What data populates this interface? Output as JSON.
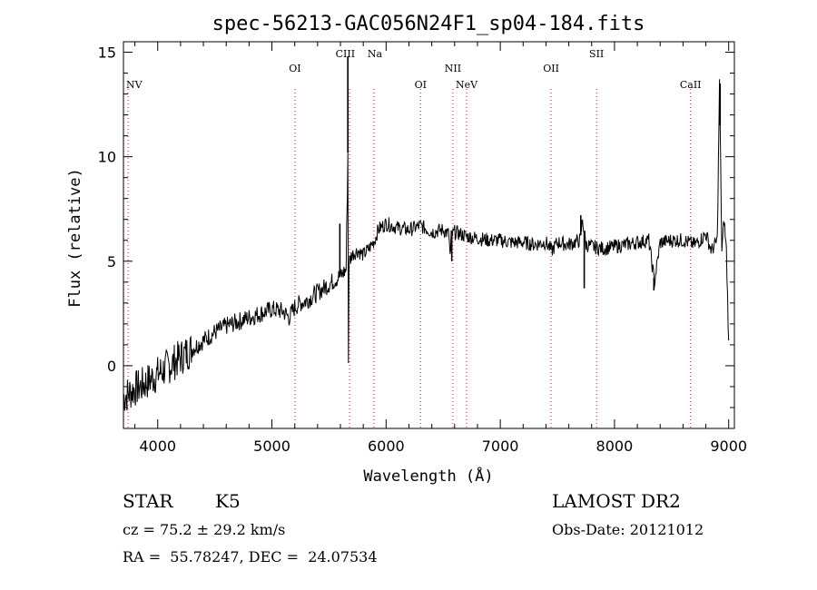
{
  "chart_data": {
    "type": "line",
    "title": "spec-56213-GAC056N24F1_sp04-184.fits",
    "xlabel": "Wavelength (Å)",
    "ylabel": "Flux (relative)",
    "xlim": [
      3700,
      9050
    ],
    "ylim": [
      -3,
      15.5
    ],
    "xticks": [
      4000,
      5000,
      6000,
      7000,
      8000,
      9000
    ],
    "xtick_labels": [
      "4000",
      "5000",
      "6000",
      "7000",
      "8000",
      "9000"
    ],
    "yticks": [
      0,
      5,
      10,
      15
    ],
    "ytick_labels": [
      "0",
      "5",
      "10",
      "15"
    ],
    "grid": false,
    "series": [
      {
        "x": [
          3700,
          3750,
          3800,
          3850,
          3900,
          3950,
          4000,
          4050,
          4100,
          4150,
          4200,
          4300,
          4400,
          4500,
          4600,
          4700,
          4800,
          4900,
          5000,
          5100,
          5150,
          5200,
          5250,
          5300,
          5350,
          5400,
          5450,
          5500,
          5550,
          5600,
          5650,
          5665,
          5670,
          5675,
          5680,
          5700,
          5750,
          5800,
          5850,
          5900,
          5930,
          5950,
          6000,
          6100,
          6200,
          6300,
          6400,
          6500,
          6550,
          6563,
          6570,
          6600,
          6700,
          6800,
          6900,
          7000,
          7100,
          7200,
          7300,
          7400,
          7450,
          7500,
          7600,
          7650,
          7700,
          7720,
          7750,
          7800,
          7900,
          8000,
          8100,
          8200,
          8300,
          8350,
          8400,
          8500,
          8600,
          8700,
          8750,
          8800,
          8850,
          8900,
          8920,
          8940,
          8960,
          8980,
          9000
        ],
        "y": [
          -1.5,
          -1.3,
          -1.1,
          -1.0,
          -0.8,
          -0.6,
          -0.4,
          -0.2,
          0.0,
          0.2,
          0.4,
          0.8,
          1.2,
          1.6,
          1.9,
          2.1,
          2.3,
          2.5,
          2.7,
          2.6,
          2.3,
          2.8,
          3.0,
          3.1,
          3.3,
          3.5,
          3.7,
          3.9,
          4.1,
          4.3,
          4.6,
          10.2,
          0.2,
          4.8,
          5.0,
          5.3,
          5.5,
          5.3,
          5.6,
          6.0,
          6.5,
          6.6,
          6.8,
          6.6,
          6.5,
          6.7,
          6.4,
          6.5,
          6.3,
          5.0,
          6.2,
          6.4,
          6.2,
          6.1,
          6.0,
          6.0,
          5.9,
          5.9,
          5.8,
          5.9,
          5.5,
          5.9,
          5.8,
          5.9,
          6.0,
          7.0,
          5.8,
          5.7,
          5.6,
          5.7,
          5.8,
          5.9,
          6.0,
          4.0,
          5.9,
          6.0,
          6.0,
          5.8,
          6.0,
          6.3,
          5.5,
          6.0,
          13.5,
          5.5,
          7.0,
          5.5,
          1.0
        ]
      }
    ],
    "emission_lines": [
      {
        "label": "NV",
        "x": 3740
      },
      {
        "label": "OI",
        "x": 5202
      },
      {
        "label": "CIII",
        "x": 5680
      },
      {
        "label": "Na",
        "x": 5893
      },
      {
        "label": "OI",
        "x": 6302
      },
      {
        "label": "NII",
        "x": 6585
      },
      {
        "label": "NeV",
        "x": 6705
      },
      {
        "label": "OII",
        "x": 7445
      },
      {
        "label": "SII",
        "x": 7843
      },
      {
        "label": "CaII",
        "x": 8666
      }
    ]
  },
  "info": {
    "class": "STAR",
    "subclass": "K5",
    "survey": "LAMOST DR2",
    "cz": "cz = 75.2 ± 29.2 km/s",
    "obs_date": "Obs-Date: 20121012",
    "coords": "RA =  55.78247, DEC =  24.07534"
  }
}
